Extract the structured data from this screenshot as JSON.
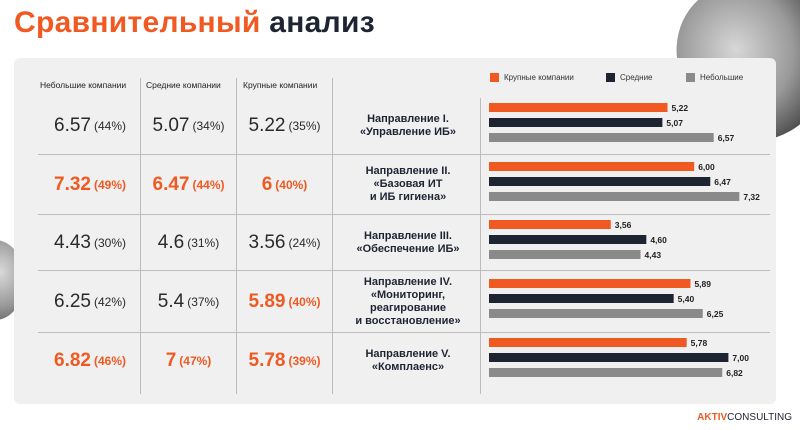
{
  "title": {
    "part1": "Сравнительный",
    "part2": "анализ"
  },
  "columns": {
    "small": "Небольшие компании",
    "medium": "Средние компании",
    "large": "Крупные компании"
  },
  "rows": [
    {
      "direction": [
        "Направление I.",
        "«Управление ИБ»"
      ],
      "small": {
        "num": "6.57",
        "pct": "(44%)"
      },
      "medium": {
        "num": "5.07",
        "pct": "(34%)"
      },
      "large": {
        "num": "5.22",
        "pct": "(35%)"
      }
    },
    {
      "direction": [
        "Направление II.",
        "«Базовая ИТ",
        "и ИБ гигиена»"
      ],
      "small": {
        "num": "7.32",
        "pct": "(49%)"
      },
      "medium": {
        "num": "6.47",
        "pct": "(44%)"
      },
      "large": {
        "num": "6",
        "pct": "(40%)"
      }
    },
    {
      "direction": [
        "Направление III.",
        "«Обеспечение ИБ»"
      ],
      "small": {
        "num": "4.43",
        "pct": "(30%)"
      },
      "medium": {
        "num": "4.6",
        "pct": "(31%)"
      },
      "large": {
        "num": "3.56",
        "pct": "(24%)"
      }
    },
    {
      "direction": [
        "Направление IV.",
        "«Мониторинг,",
        "реагирование",
        "и восстановление»"
      ],
      "small": {
        "num": "6.25",
        "pct": "(42%)"
      },
      "medium": {
        "num": "5.4",
        "pct": "(37%)"
      },
      "large": {
        "num": "5.89",
        "pct": "(40%)"
      }
    },
    {
      "direction": [
        "Направление V.",
        "«Комплаенс»"
      ],
      "small": {
        "num": "6.82",
        "pct": "(46%)"
      },
      "medium": {
        "num": "7",
        "pct": "(47%)"
      },
      "large": {
        "num": "5.78",
        "pct": "(39%)"
      }
    }
  ],
  "highlight": [
    {
      "row": 1,
      "col": "small"
    },
    {
      "row": 1,
      "col": "medium"
    },
    {
      "row": 1,
      "col": "large"
    },
    {
      "row": 3,
      "col": "large"
    },
    {
      "row": 4,
      "col": "small"
    },
    {
      "row": 4,
      "col": "medium"
    },
    {
      "row": 4,
      "col": "large"
    }
  ],
  "colors": {
    "accent": "#f05a22",
    "dark": "#1f2433",
    "gray": "#8a8a8a"
  },
  "chart_data": {
    "type": "bar",
    "orientation": "horizontal",
    "categories": [
      "Направление I.",
      "Направление II.",
      "Направление III.",
      "Направление IV.",
      "Направление V."
    ],
    "series": [
      {
        "name": "Крупные компании",
        "color": "#f05a22",
        "values": [
          5.22,
          6.0,
          3.56,
          5.89,
          5.78
        ],
        "labels": [
          "5,22",
          "6,00",
          "3,56",
          "5,89",
          "5,78"
        ]
      },
      {
        "name": "Средние",
        "color": "#1f2433",
        "values": [
          5.07,
          6.47,
          4.6,
          5.4,
          7.0
        ],
        "labels": [
          "5,07",
          "6,47",
          "4,60",
          "5,40",
          "7,00"
        ]
      },
      {
        "name": "Небольшие",
        "color": "#8a8a8a",
        "values": [
          6.57,
          7.32,
          4.43,
          6.25,
          6.82
        ],
        "labels": [
          "6,57",
          "7,32",
          "4,43",
          "6,25",
          "6,82"
        ]
      }
    ],
    "xlim": [
      0,
      8
    ],
    "legend": "top"
  },
  "brand": {
    "part1": "AKTIV",
    "part2": "CONSULTING"
  }
}
